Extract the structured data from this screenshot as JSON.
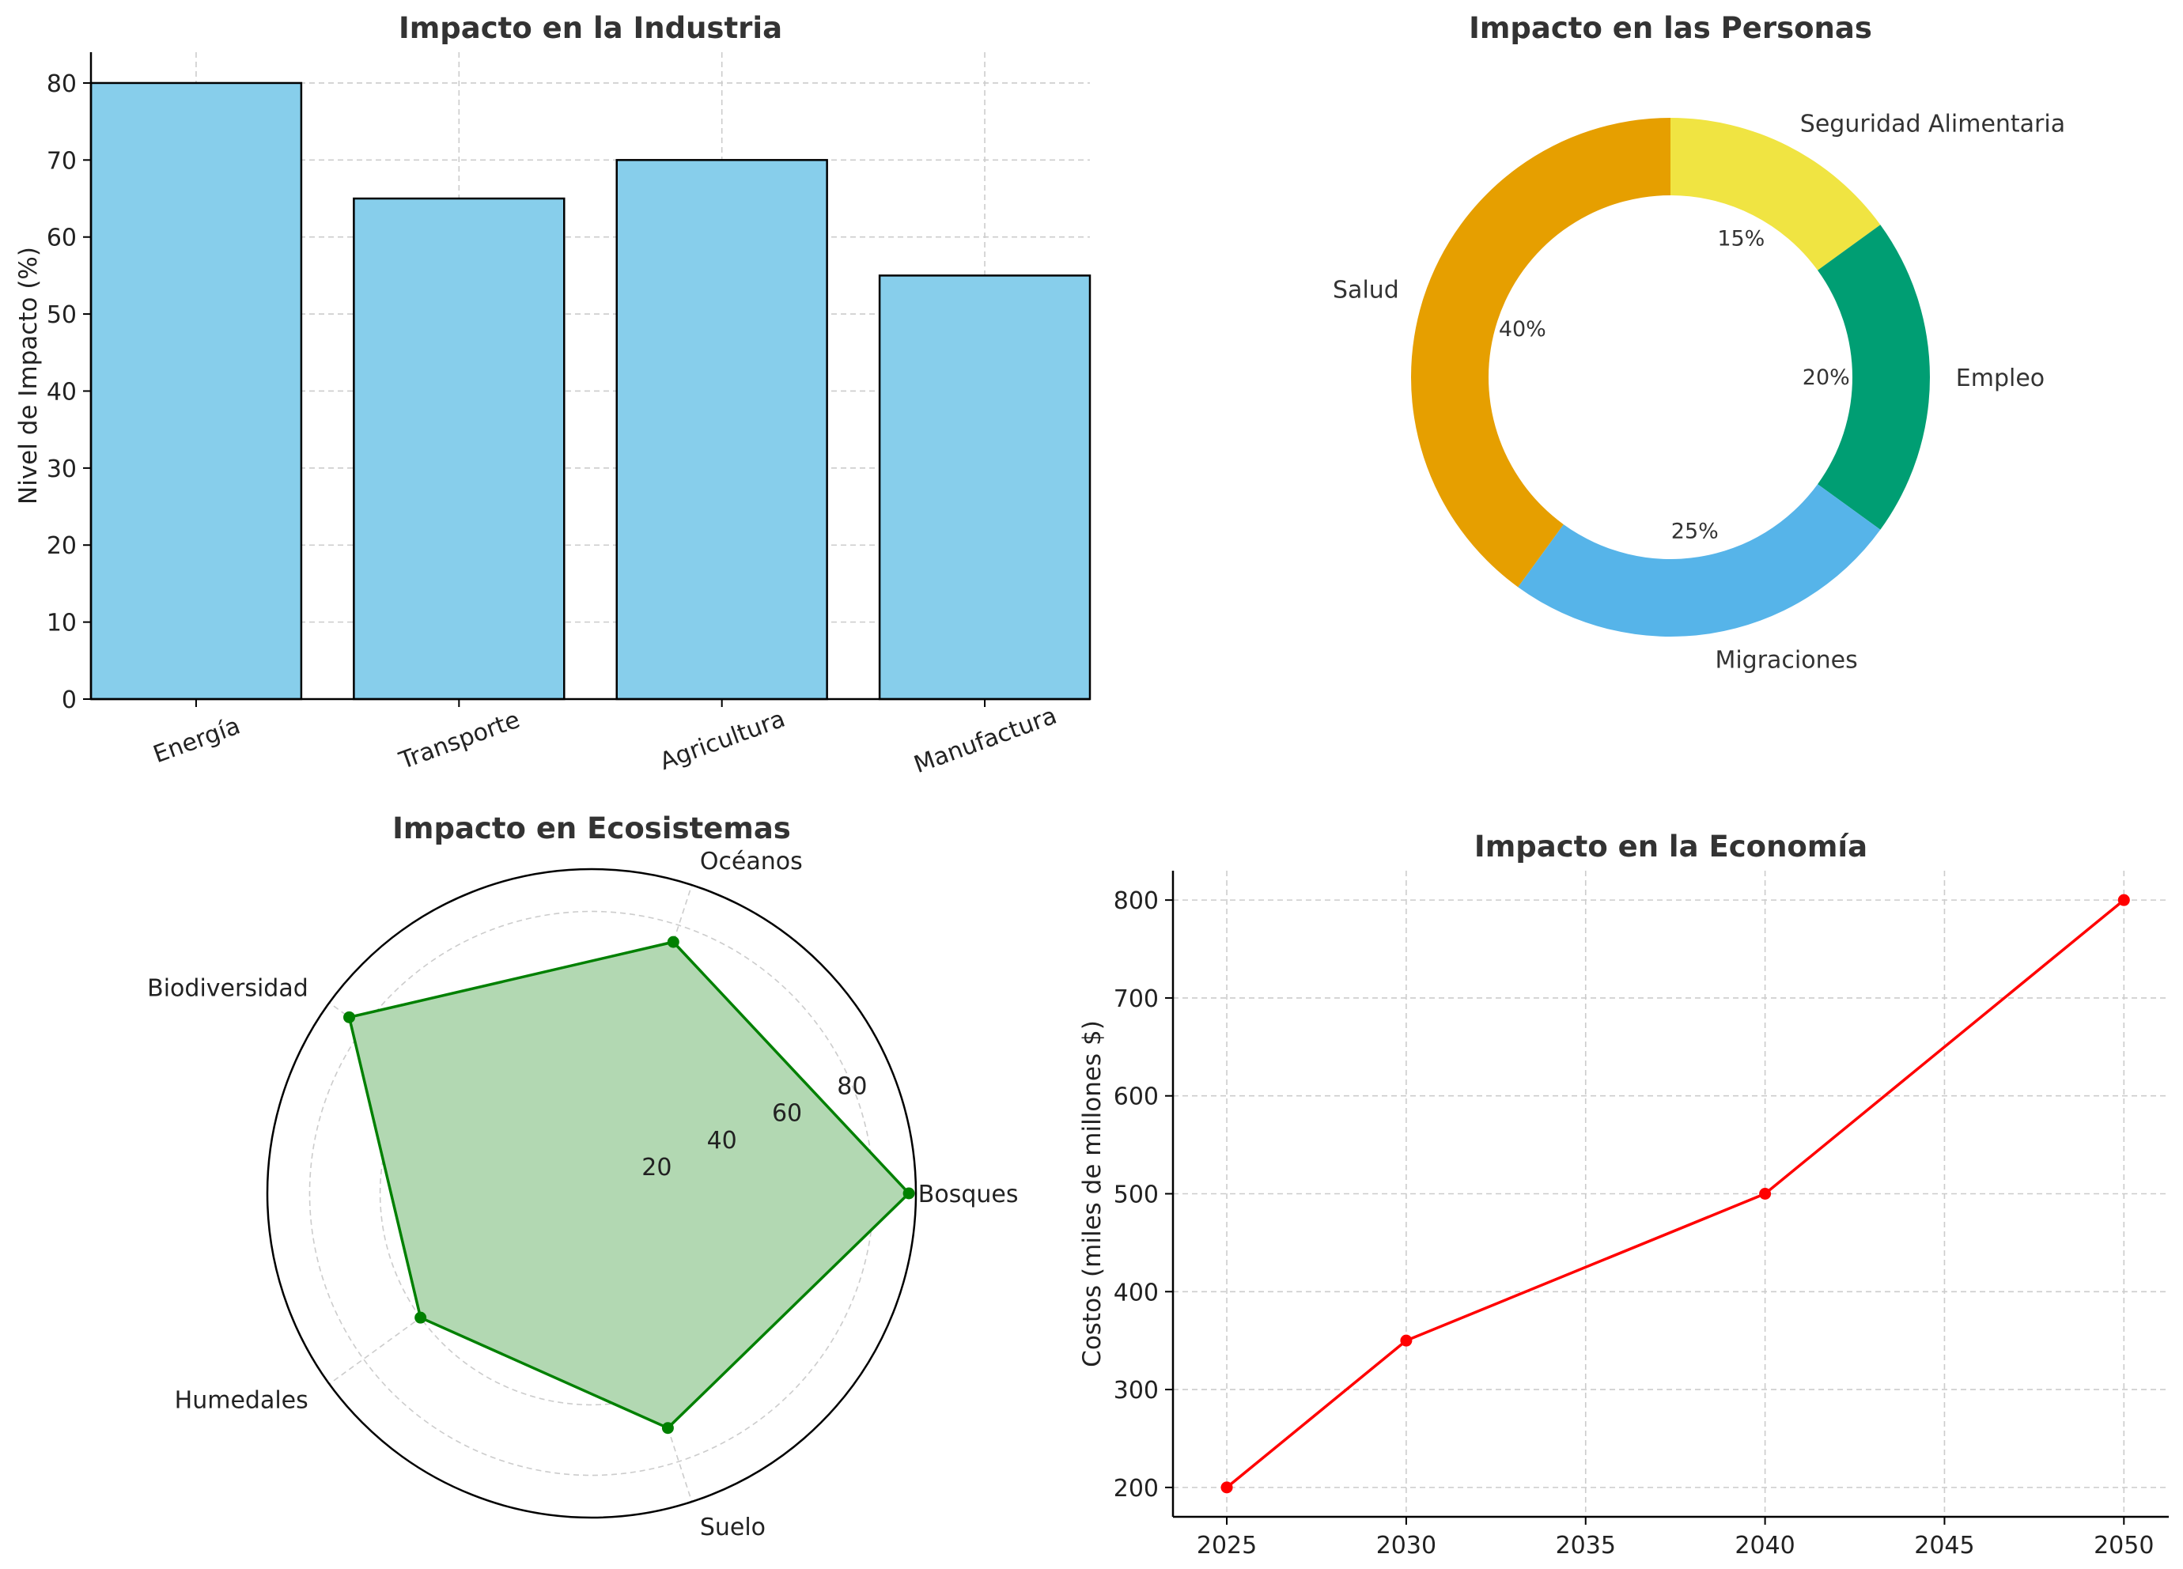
{
  "chart_data": [
    {
      "id": "industria",
      "type": "bar",
      "title": "Impacto en la Industria",
      "ylabel": "Nivel de Impacto (%)",
      "xlabel": "",
      "categories": [
        "Energía",
        "Transporte",
        "Agricultura",
        "Manufactura"
      ],
      "values": [
        80,
        65,
        70,
        55
      ],
      "ylim": [
        0,
        84
      ],
      "yticks": [
        0,
        10,
        20,
        30,
        40,
        50,
        60,
        70,
        80
      ],
      "grid": true,
      "colors": {
        "bar": "#87ceeb",
        "edge": "#000000"
      }
    },
    {
      "id": "personas",
      "type": "pie",
      "subtype": "donut",
      "title": "Impacto en las Personas",
      "labels": [
        "Seguridad Alimentaria",
        "Empleo",
        "Migraciones",
        "Salud"
      ],
      "values": [
        15,
        20,
        25,
        40
      ],
      "percent_labels": [
        "15%",
        "20%",
        "25%",
        "40%"
      ],
      "colors": [
        "#f0e442",
        "#009e73",
        "#56b4e9",
        "#e69f00"
      ]
    },
    {
      "id": "ecosistemas",
      "type": "radar",
      "title": "Impacto en Ecosistemas",
      "categories": [
        "Bosques",
        "Océanos",
        "Biodiversidad",
        "Humedales",
        "Suelo"
      ],
      "values": [
        90,
        75,
        85,
        60,
        70
      ],
      "rticks": [
        20,
        40,
        60,
        80
      ],
      "rmax": 92,
      "grid": true,
      "colors": {
        "line": "#008000",
        "fill": "#b2d8b2"
      }
    },
    {
      "id": "economia",
      "type": "line",
      "title": "Impacto en la Economía",
      "ylabel": "Costos (miles de millones $)",
      "xlabel": "",
      "x": [
        2025,
        2030,
        2040,
        2050
      ],
      "y": [
        200,
        350,
        500,
        800
      ],
      "xlim": [
        2023.5,
        2051.25
      ],
      "ylim": [
        170,
        830
      ],
      "xticks": [
        2025,
        2030,
        2035,
        2040,
        2045,
        2050
      ],
      "yticks": [
        200,
        300,
        400,
        500,
        600,
        700,
        800
      ],
      "grid": true,
      "colors": {
        "line": "#ff0000"
      }
    }
  ]
}
